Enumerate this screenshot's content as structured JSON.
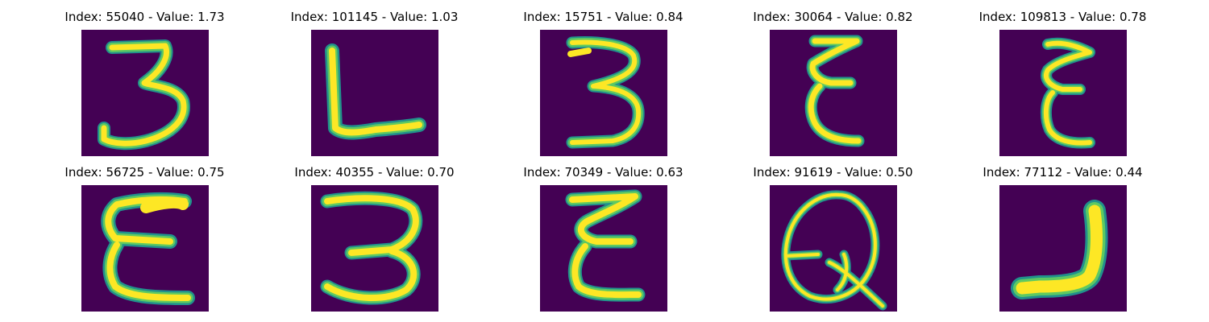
{
  "colors": {
    "background": "#440154",
    "teal": "#21918c",
    "green": "#5ec962",
    "yellow": "#fde725"
  },
  "panels": [
    {
      "title": "Index: 55040 - Value: 1.73",
      "index": 55040,
      "value": 1.73,
      "glyph": "digit-3"
    },
    {
      "title": "Index: 101145 - Value: 1.03",
      "index": 101145,
      "value": 1.03,
      "glyph": "letter-L"
    },
    {
      "title": "Index: 15751 - Value: 0.84",
      "index": 15751,
      "value": 0.84,
      "glyph": "digit-3"
    },
    {
      "title": "Index: 30064 - Value: 0.82",
      "index": 30064,
      "value": 0.82,
      "glyph": "mirrored-3"
    },
    {
      "title": "Index: 109813 - Value: 0.78",
      "index": 109813,
      "value": 0.78,
      "glyph": "mirrored-3"
    },
    {
      "title": "Index: 56725 - Value: 0.75",
      "index": 56725,
      "value": 0.75,
      "glyph": "mirrored-3"
    },
    {
      "title": "Index: 40355 - Value: 0.70",
      "index": 40355,
      "value": 0.7,
      "glyph": "digit-3"
    },
    {
      "title": "Index: 70349 - Value: 0.63",
      "index": 70349,
      "value": 0.63,
      "glyph": "mirrored-3"
    },
    {
      "title": "Index: 91619 - Value: 0.50",
      "index": 91619,
      "value": 0.5,
      "glyph": "letter-Q"
    },
    {
      "title": "Index: 77112 - Value: 0.44",
      "index": 77112,
      "value": 0.44,
      "glyph": "letter-J"
    }
  ]
}
